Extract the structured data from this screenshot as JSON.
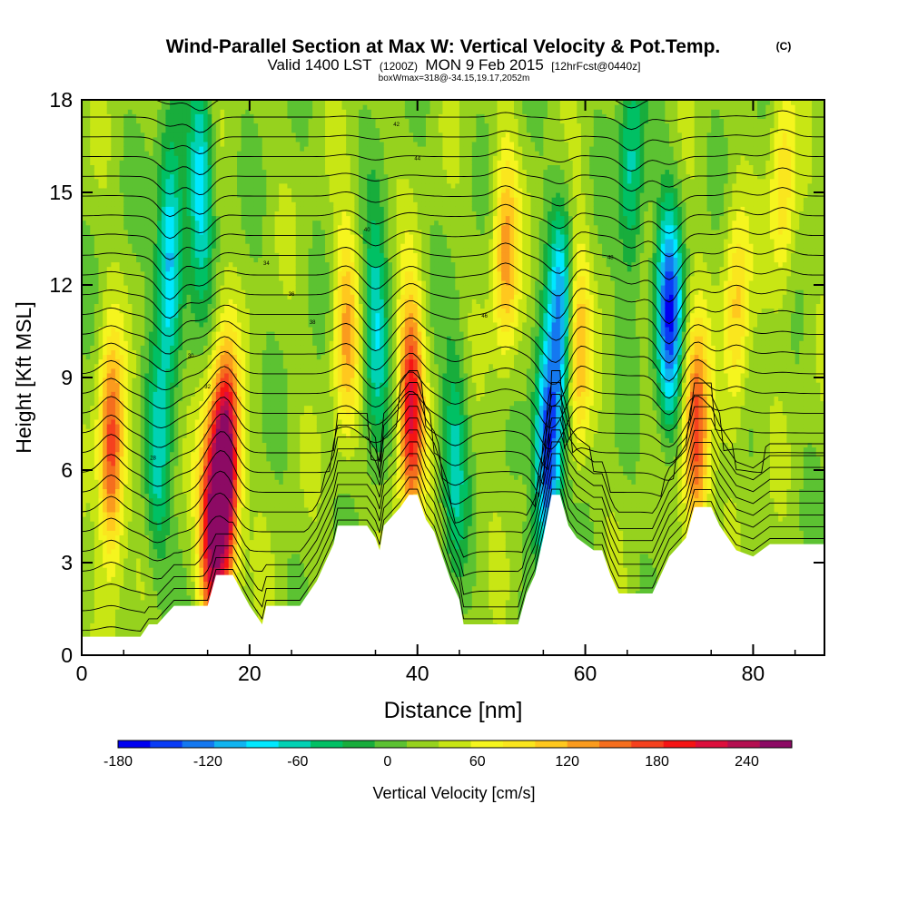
{
  "header": {
    "title": "Wind-Parallel Section at Max W: Vertical Velocity & Pot.Temp.",
    "copyright": "(C)",
    "valid_prefix": "Valid 1400 LST",
    "valid_utc": "(1200Z)",
    "valid_date": "MON 9 Feb 2015",
    "forecast": "[12hrFcst@0440z]",
    "boxinfo": "boxWmax=318@-34.15,19.17,2052m"
  },
  "chart_data": {
    "type": "heatmap",
    "xlabel": "Distance [nm]",
    "ylabel": "Height [Kft MSL]",
    "xlim": [
      0,
      88.5
    ],
    "ylim": [
      0,
      18
    ],
    "x_ticks": [
      0,
      20,
      40,
      60,
      80
    ],
    "y_ticks": [
      0,
      3,
      6,
      9,
      12,
      15,
      18
    ],
    "grid": false,
    "colorbar": {
      "label": "Vertical Velocity [cm/s]",
      "range": [
        -180,
        270
      ],
      "step": 20,
      "tick_values": [
        -180,
        -120,
        -60,
        0,
        60,
        120,
        180,
        240
      ],
      "colors": [
        "#0000f0",
        "#0a3cf5",
        "#1478f0",
        "#10b4f0",
        "#00e8ff",
        "#00d2b4",
        "#00c064",
        "#18ad3c",
        "#5cc232",
        "#96d21e",
        "#c8e614",
        "#f5f51e",
        "#fae61e",
        "#ffc81e",
        "#fa9b1e",
        "#f56e1e",
        "#f5411e",
        "#f51414",
        "#dc0f3c",
        "#b40f50",
        "#8c0a64"
      ]
    },
    "terrain_kft": [
      [
        0,
        0.6
      ],
      [
        3,
        0.6
      ],
      [
        7,
        0.6
      ],
      [
        8,
        1.0
      ],
      [
        9,
        1.0
      ],
      [
        10,
        1.3
      ],
      [
        11,
        1.6
      ],
      [
        15,
        1.6
      ],
      [
        16,
        2.6
      ],
      [
        18,
        2.6
      ],
      [
        20,
        1.6
      ],
      [
        21.5,
        1.0
      ],
      [
        22,
        1.6
      ],
      [
        26,
        1.6
      ],
      [
        28,
        2.4
      ],
      [
        30,
        3.6
      ],
      [
        30.5,
        4.2
      ],
      [
        34,
        4.2
      ],
      [
        35,
        3.8
      ],
      [
        35.5,
        3.4
      ],
      [
        36,
        4.2
      ],
      [
        38,
        4.8
      ],
      [
        39,
        5.2
      ],
      [
        40,
        5.2
      ],
      [
        41,
        4.4
      ],
      [
        42,
        4.0
      ],
      [
        43,
        3.2
      ],
      [
        44,
        2.4
      ],
      [
        45,
        1.8
      ],
      [
        45.5,
        1.0
      ],
      [
        52,
        1.0
      ],
      [
        53,
        2.0
      ],
      [
        54,
        2.6
      ],
      [
        55,
        3.8
      ],
      [
        56,
        5.2
      ],
      [
        57,
        5.2
      ],
      [
        58,
        4.2
      ],
      [
        59,
        3.8
      ],
      [
        61,
        3.4
      ],
      [
        62,
        3.4
      ],
      [
        63,
        2.6
      ],
      [
        64,
        2.0
      ],
      [
        68,
        2.0
      ],
      [
        69,
        2.6
      ],
      [
        70,
        3.2
      ],
      [
        72,
        3.8
      ],
      [
        73,
        4.8
      ],
      [
        75,
        4.8
      ],
      [
        76,
        4.2
      ],
      [
        78,
        3.4
      ],
      [
        80,
        3.2
      ],
      [
        82,
        3.6
      ],
      [
        88.5,
        3.6
      ]
    ],
    "updrafts": [
      {
        "x": 3.5,
        "y": 6.5,
        "w": 150
      },
      {
        "x": 15.5,
        "y": 4.0,
        "w": 190
      },
      {
        "x": 17.2,
        "y": 6.0,
        "w": 260
      },
      {
        "x": 31.5,
        "y": 10.5,
        "w": 90
      },
      {
        "x": 39.2,
        "y": 8.0,
        "w": 180
      },
      {
        "x": 50.5,
        "y": 13.0,
        "w": 100
      },
      {
        "x": 59.0,
        "y": 10.0,
        "w": 100
      },
      {
        "x": 73.2,
        "y": 7.0,
        "w": 150
      },
      {
        "x": 78.0,
        "y": 11.0,
        "w": 80
      },
      {
        "x": 83.5,
        "y": 15.0,
        "w": 70
      }
    ],
    "downdrafts": [
      {
        "x": 10.5,
        "y": 13.0,
        "w": -130
      },
      {
        "x": 9.0,
        "y": 6.0,
        "w": -70
      },
      {
        "x": 14.2,
        "y": 15.5,
        "w": -100
      },
      {
        "x": 35.0,
        "y": 10.5,
        "w": -90
      },
      {
        "x": 44.5,
        "y": 6.5,
        "w": -70
      },
      {
        "x": 55.5,
        "y": 6.5,
        "w": -180
      },
      {
        "x": 57.2,
        "y": 11.0,
        "w": -120
      },
      {
        "x": 65.5,
        "y": 15.5,
        "w": -80
      },
      {
        "x": 70.0,
        "y": 11.0,
        "w": -160
      }
    ],
    "isentrope_labels": [
      "28",
      "30",
      "32",
      "34",
      "36",
      "38",
      "40",
      "42",
      "44",
      "46",
      "48"
    ]
  }
}
